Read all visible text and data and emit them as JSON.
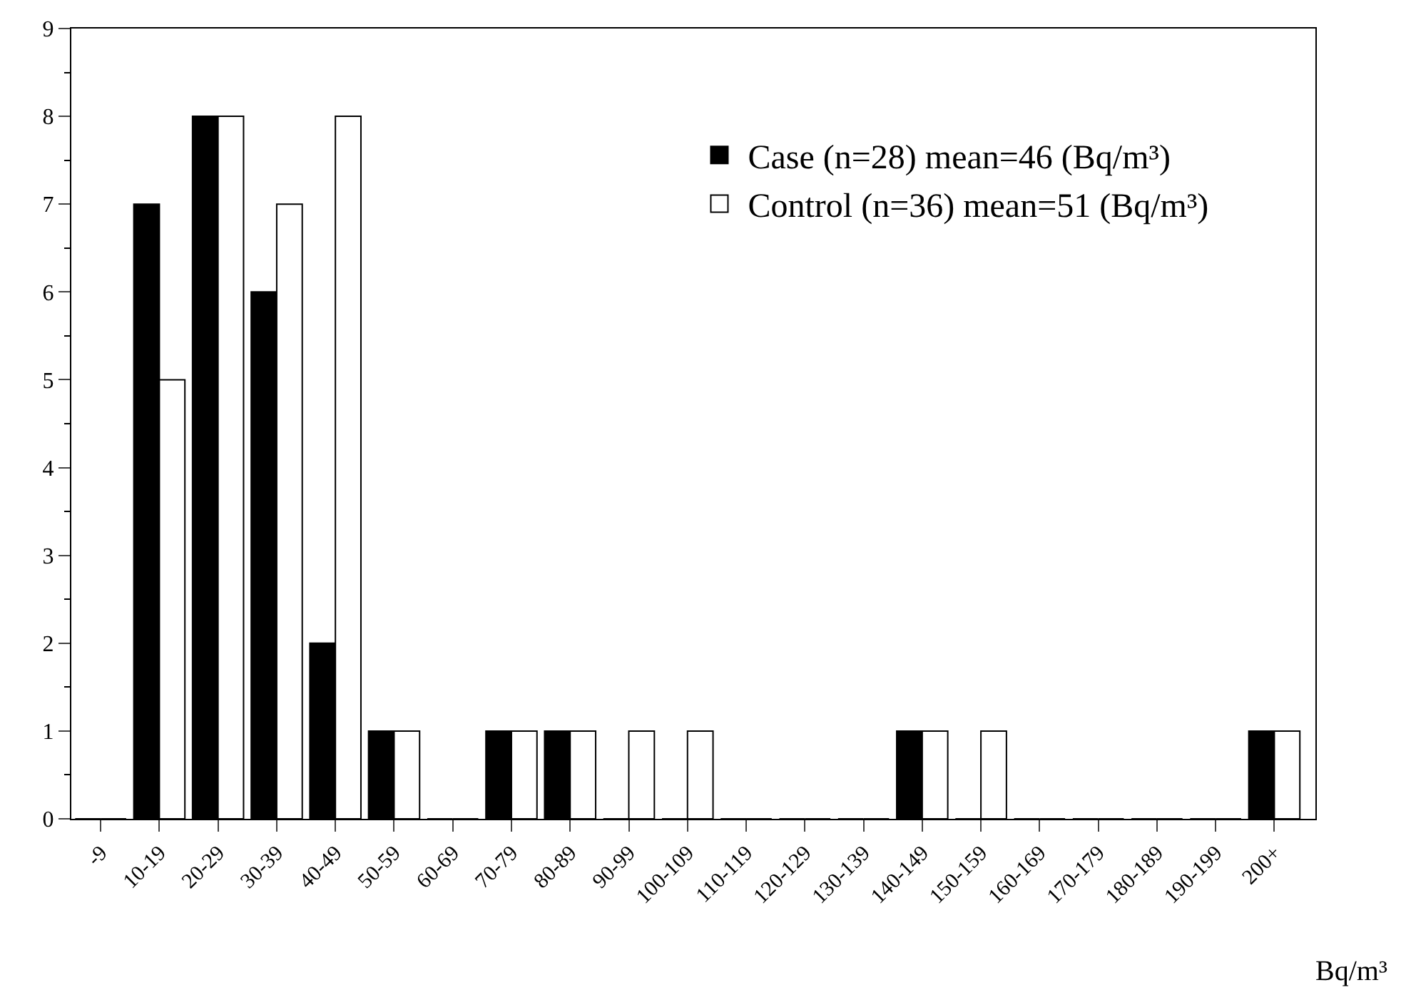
{
  "chart_data": {
    "type": "bar",
    "xlabel": "Bq/m³",
    "categories": [
      "-9",
      "10-19",
      "20-29",
      "30-39",
      "40-49",
      "50-59",
      "60-69",
      "70-79",
      "80-89",
      "90-99",
      "100-109",
      "110-119",
      "120-129",
      "130-139",
      "140-149",
      "150-159",
      "160-169",
      "170-179",
      "180-189",
      "190-199",
      "200+"
    ],
    "series": [
      {
        "name": "Case (n=28) mean=46 (Bq/m³)",
        "color": "#000000",
        "values": [
          0,
          7,
          8,
          6,
          2,
          1,
          0,
          1,
          1,
          0,
          0,
          0,
          0,
          0,
          1,
          0,
          0,
          0,
          0,
          0,
          1
        ]
      },
      {
        "name": "Control (n=36) mean=51 (Bq/m³)",
        "color": "#ffffff",
        "values": [
          0,
          5,
          8,
          7,
          8,
          1,
          0,
          1,
          1,
          1,
          1,
          0,
          0,
          0,
          1,
          1,
          0,
          0,
          0,
          0,
          1
        ]
      }
    ],
    "ylim": [
      0,
      9
    ],
    "yticks": [
      0,
      1,
      2,
      3,
      4,
      5,
      6,
      7,
      8,
      9
    ],
    "legend": "top right"
  }
}
